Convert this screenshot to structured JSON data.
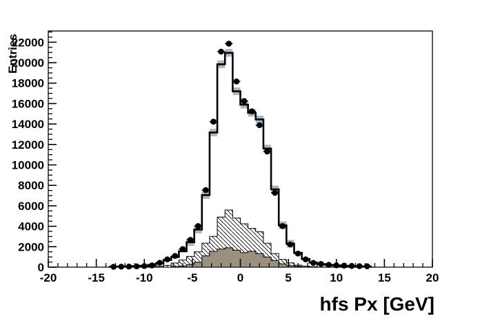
{
  "figure": {
    "background": "#ffffff",
    "frame_color": "#000000"
  },
  "chart_data": {
    "type": "bar",
    "subtype": "histogram-overlay",
    "title": "",
    "xlabel": "hfs Px [GeV]",
    "ylabel": "Entries",
    "xlim": [
      -20,
      20
    ],
    "ylim": [
      0,
      23100
    ],
    "grid": false,
    "legend": "none",
    "x_major_ticks": [
      -20,
      -15,
      -10,
      -5,
      0,
      5,
      10,
      15,
      20
    ],
    "x_major_tick_labels": [
      "-20",
      "-15",
      "-10",
      "-5",
      "0",
      "5",
      "10",
      "15",
      "20"
    ],
    "x_minor_step": 1,
    "y_major_step": 2000,
    "y_minor_step": 500,
    "y_major_tick_labels": [
      "0",
      "2000",
      "4000",
      "6000",
      "8000",
      "10000",
      "12000",
      "14000",
      "16000",
      "18000",
      "20000",
      "22000"
    ],
    "bin_width": 0.8,
    "bin_centers": [
      -13.2,
      -12.4,
      -11.6,
      -10.8,
      -10,
      -9.2,
      -8.4,
      -7.6,
      -6.8,
      -6,
      -5.2,
      -4.4,
      -3.6,
      -2.8,
      -2,
      -1.2,
      -0.4,
      0.4,
      1.2,
      2,
      2.8,
      3.6,
      4.4,
      5.2,
      6,
      6.8,
      7.6,
      8.4,
      9.2,
      10,
      10.8,
      11.6,
      12.4,
      13.2
    ],
    "series": [
      {
        "name": "data-points",
        "style": "points",
        "marker": "filled-circle",
        "color": "#000000",
        "values": [
          40,
          50,
          60,
          80,
          110,
          170,
          430,
          760,
          1100,
          1770,
          2670,
          4020,
          7540,
          14230,
          21080,
          21860,
          18160,
          16250,
          15240,
          13890,
          11310,
          7270,
          4020,
          2220,
          1330,
          760,
          420,
          320,
          230,
          180,
          150,
          120,
          100,
          90
        ]
      },
      {
        "name": "total-mc-line",
        "style": "step-line",
        "color": "#000000",
        "values": [
          50,
          60,
          80,
          100,
          140,
          220,
          380,
          700,
          990,
          1550,
          2440,
          3680,
          7050,
          13170,
          19845,
          20960,
          17200,
          15900,
          15100,
          14450,
          11600,
          7610,
          4100,
          2300,
          1400,
          800,
          450,
          300,
          220,
          170,
          130,
          100,
          80,
          60
        ]
      },
      {
        "name": "mc-uncertainty-band",
        "style": "squares",
        "color": "#a7b7c4",
        "min_value_shown": 2000,
        "values": [
          50,
          60,
          80,
          100,
          140,
          220,
          380,
          700,
          990,
          1550,
          2440,
          3680,
          7050,
          13170,
          19845,
          20960,
          17200,
          15900,
          15100,
          14450,
          11600,
          7610,
          4100,
          2300,
          1400,
          800,
          450,
          300,
          220,
          170,
          130,
          100,
          80,
          60
        ]
      },
      {
        "name": "background-hatched",
        "style": "step-fill",
        "fill": "hatch-backslash",
        "outline": "#000000",
        "values": [
          0,
          0,
          0,
          0,
          0,
          30,
          80,
          180,
          400,
          700,
          1050,
          1500,
          2350,
          3010,
          4900,
          5590,
          4800,
          4240,
          3790,
          3460,
          2340,
          1330,
          760,
          420,
          200,
          100,
          50,
          0,
          0,
          0,
          0,
          0,
          0,
          0
        ]
      },
      {
        "name": "background-gray",
        "style": "step-fill",
        "fill": "#9a9080",
        "outline": "#000000",
        "values": [
          0,
          0,
          0,
          0,
          0,
          0,
          0,
          0,
          60,
          120,
          250,
          480,
          1100,
          1550,
          1770,
          1890,
          1660,
          1430,
          1550,
          1330,
          990,
          650,
          320,
          150,
          80,
          0,
          0,
          0,
          0,
          0,
          0,
          0,
          0,
          0
        ]
      }
    ]
  }
}
